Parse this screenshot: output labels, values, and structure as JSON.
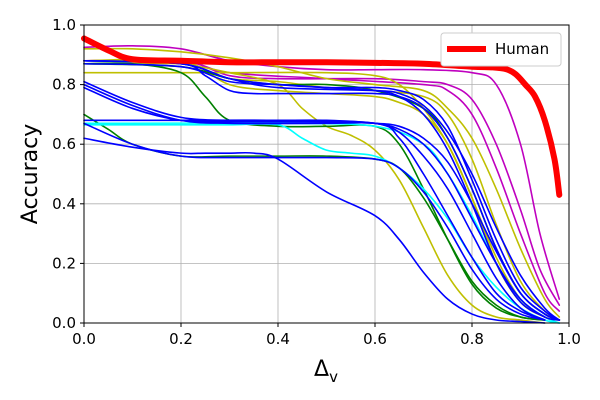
{
  "chart_data": {
    "type": "line",
    "title": "",
    "xlabel": "Δ",
    "xlabel_subscript": "v",
    "ylabel": "Accuracy",
    "xlim": [
      0.0,
      1.0
    ],
    "ylim": [
      0.0,
      1.0
    ],
    "xticks": [
      0.0,
      0.2,
      0.4,
      0.6,
      0.8,
      1.0
    ],
    "xtick_labels": [
      "0.0",
      "0.2",
      "0.4",
      "0.6",
      "0.8",
      "1.0"
    ],
    "yticks": [
      0.0,
      0.2,
      0.4,
      0.6,
      0.8,
      1.0
    ],
    "ytick_labels": [
      "0.0",
      "0.2",
      "0.4",
      "0.6",
      "0.8",
      "1.0"
    ],
    "grid": true,
    "legend": {
      "position": "top-right",
      "entries": [
        "Human"
      ]
    },
    "colors": {
      "human": "#ff0000",
      "blue": "#0000ff",
      "green": "#008000",
      "olive": "#bfbf00",
      "cyan": "#00ffff",
      "magenta": "#bf00bf"
    },
    "series": [
      {
        "name": "Human",
        "color": "#ff0000",
        "width": 6,
        "x": [
          0.0,
          0.05,
          0.1,
          0.2,
          0.3,
          0.4,
          0.5,
          0.6,
          0.7,
          0.8,
          0.84,
          0.87,
          0.89,
          0.91,
          0.93,
          0.95,
          0.97,
          0.98
        ],
        "y": [
          0.955,
          0.915,
          0.885,
          0.88,
          0.875,
          0.875,
          0.875,
          0.873,
          0.87,
          0.86,
          0.858,
          0.852,
          0.835,
          0.8,
          0.76,
          0.68,
          0.55,
          0.43
        ]
      },
      {
        "name": "m1",
        "color": "#bf00bf",
        "x": [
          0.0,
          0.1,
          0.2,
          0.3,
          0.4,
          0.5,
          0.6,
          0.7,
          0.8,
          0.85,
          0.9,
          0.94,
          0.98
        ],
        "y": [
          0.925,
          0.93,
          0.92,
          0.88,
          0.86,
          0.85,
          0.85,
          0.85,
          0.84,
          0.8,
          0.6,
          0.3,
          0.08
        ]
      },
      {
        "name": "m2",
        "color": "#bf00bf",
        "x": [
          0.0,
          0.2,
          0.3,
          0.4,
          0.6,
          0.7,
          0.75,
          0.8,
          0.85,
          0.9,
          0.94,
          0.98
        ],
        "y": [
          0.88,
          0.88,
          0.83,
          0.82,
          0.82,
          0.81,
          0.8,
          0.75,
          0.6,
          0.38,
          0.18,
          0.06
        ]
      },
      {
        "name": "m3",
        "color": "#bf00bf",
        "x": [
          0.0,
          0.2,
          0.3,
          0.5,
          0.7,
          0.75,
          0.8,
          0.85,
          0.9,
          0.95,
          0.98
        ],
        "y": [
          0.88,
          0.88,
          0.84,
          0.82,
          0.8,
          0.78,
          0.7,
          0.52,
          0.3,
          0.1,
          0.04
        ]
      },
      {
        "name": "o1",
        "color": "#bfbf00",
        "x": [
          0.0,
          0.1,
          0.2,
          0.3,
          0.4,
          0.5,
          0.6,
          0.7,
          0.75,
          0.8,
          0.85,
          0.9,
          0.95,
          0.98
        ],
        "y": [
          0.92,
          0.92,
          0.91,
          0.89,
          0.86,
          0.82,
          0.8,
          0.78,
          0.72,
          0.62,
          0.45,
          0.25,
          0.08,
          0.02
        ]
      },
      {
        "name": "o2",
        "color": "#bfbf00",
        "x": [
          0.0,
          0.15,
          0.2,
          0.3,
          0.5,
          0.6,
          0.65,
          0.7,
          0.75,
          0.8,
          0.85,
          0.9,
          0.95,
          0.98
        ],
        "y": [
          0.84,
          0.84,
          0.84,
          0.84,
          0.84,
          0.83,
          0.8,
          0.72,
          0.6,
          0.42,
          0.22,
          0.08,
          0.02,
          0.01
        ]
      },
      {
        "name": "o3",
        "color": "#bfbf00",
        "x": [
          0.0,
          0.2,
          0.25,
          0.3,
          0.4,
          0.5,
          0.6,
          0.7,
          0.75,
          0.8,
          0.85,
          0.9,
          0.95,
          0.98
        ],
        "y": [
          0.87,
          0.87,
          0.85,
          0.82,
          0.81,
          0.79,
          0.78,
          0.76,
          0.7,
          0.55,
          0.33,
          0.14,
          0.04,
          0.01
        ]
      },
      {
        "name": "o4",
        "color": "#bfbf00",
        "x": [
          0.0,
          0.1,
          0.2,
          0.3,
          0.4,
          0.45,
          0.5,
          0.55,
          0.6,
          0.65,
          0.7,
          0.75,
          0.8,
          0.85,
          0.9,
          0.95
        ],
        "y": [
          0.88,
          0.88,
          0.87,
          0.84,
          0.8,
          0.72,
          0.66,
          0.63,
          0.58,
          0.48,
          0.32,
          0.16,
          0.06,
          0.02,
          0.01,
          0.0
        ]
      },
      {
        "name": "o5",
        "color": "#bfbf00",
        "x": [
          0.0,
          0.2,
          0.3,
          0.4,
          0.5,
          0.6,
          0.65,
          0.7,
          0.75,
          0.8,
          0.85,
          0.9,
          0.95,
          0.98
        ],
        "y": [
          0.88,
          0.88,
          0.8,
          0.78,
          0.77,
          0.76,
          0.74,
          0.7,
          0.6,
          0.42,
          0.2,
          0.07,
          0.02,
          0.01
        ]
      },
      {
        "name": "g1",
        "color": "#008000",
        "x": [
          0.0,
          0.1,
          0.2,
          0.25,
          0.3,
          0.4,
          0.5,
          0.6,
          0.65,
          0.7,
          0.75,
          0.8,
          0.85,
          0.9,
          0.95
        ],
        "y": [
          0.87,
          0.87,
          0.84,
          0.76,
          0.68,
          0.66,
          0.66,
          0.66,
          0.6,
          0.45,
          0.28,
          0.13,
          0.05,
          0.02,
          0.01
        ]
      },
      {
        "name": "g2",
        "color": "#008000",
        "x": [
          0.0,
          0.05,
          0.1,
          0.2,
          0.3,
          0.4,
          0.5,
          0.6,
          0.65,
          0.7,
          0.75,
          0.8,
          0.85,
          0.9,
          0.95
        ],
        "y": [
          0.7,
          0.65,
          0.6,
          0.56,
          0.56,
          0.56,
          0.56,
          0.55,
          0.52,
          0.42,
          0.28,
          0.14,
          0.06,
          0.02,
          0.01
        ]
      },
      {
        "name": "g3",
        "color": "#008000",
        "x": [
          0.0,
          0.2,
          0.3,
          0.4,
          0.5,
          0.6,
          0.7,
          0.75,
          0.8,
          0.85,
          0.9,
          0.95,
          0.98
        ],
        "y": [
          0.87,
          0.86,
          0.82,
          0.8,
          0.8,
          0.78,
          0.72,
          0.62,
          0.45,
          0.25,
          0.1,
          0.03,
          0.01
        ]
      },
      {
        "name": "c1",
        "color": "#00ffff",
        "x": [
          0.0,
          0.1,
          0.2,
          0.3,
          0.4,
          0.45,
          0.5,
          0.55,
          0.6,
          0.65,
          0.7,
          0.75,
          0.8,
          0.85,
          0.9,
          0.95,
          0.98
        ],
        "y": [
          0.665,
          0.665,
          0.665,
          0.665,
          0.665,
          0.62,
          0.58,
          0.57,
          0.56,
          0.52,
          0.45,
          0.35,
          0.22,
          0.12,
          0.05,
          0.01,
          0.0
        ]
      },
      {
        "name": "c2",
        "color": "#00ffff",
        "x": [
          0.0,
          0.4,
          0.6,
          0.7,
          0.75,
          0.8,
          0.85,
          0.9,
          0.95,
          0.98
        ],
        "y": [
          0.67,
          0.67,
          0.66,
          0.6,
          0.5,
          0.36,
          0.2,
          0.08,
          0.02,
          0.0
        ]
      },
      {
        "name": "b1",
        "color": "#0000ff",
        "x": [
          0.0,
          0.1,
          0.2,
          0.25,
          0.3,
          0.35,
          0.4,
          0.5,
          0.6,
          0.65,
          0.7,
          0.75,
          0.8,
          0.85,
          0.9,
          0.95
        ],
        "y": [
          0.62,
          0.59,
          0.57,
          0.57,
          0.57,
          0.57,
          0.55,
          0.44,
          0.36,
          0.28,
          0.17,
          0.08,
          0.03,
          0.01,
          0.005,
          0.0
        ]
      },
      {
        "name": "b2",
        "color": "#0000ff",
        "x": [
          0.0,
          0.1,
          0.2,
          0.3,
          0.5,
          0.6,
          0.65,
          0.7,
          0.75,
          0.8,
          0.85,
          0.9,
          0.95
        ],
        "y": [
          0.67,
          0.6,
          0.56,
          0.555,
          0.555,
          0.55,
          0.52,
          0.44,
          0.32,
          0.18,
          0.08,
          0.03,
          0.01
        ]
      },
      {
        "name": "b3",
        "color": "#0000ff",
        "x": [
          0.0,
          0.1,
          0.2,
          0.3,
          0.4,
          0.5,
          0.6,
          0.65,
          0.7,
          0.75,
          0.8,
          0.85,
          0.9,
          0.95,
          0.98
        ],
        "y": [
          0.81,
          0.74,
          0.69,
          0.68,
          0.68,
          0.68,
          0.67,
          0.65,
          0.6,
          0.5,
          0.35,
          0.2,
          0.08,
          0.02,
          0.01
        ]
      },
      {
        "name": "b4",
        "color": "#0000ff",
        "x": [
          0.0,
          0.1,
          0.2,
          0.3,
          0.5,
          0.6,
          0.65,
          0.7,
          0.75,
          0.8,
          0.85,
          0.9,
          0.95,
          0.98
        ],
        "y": [
          0.79,
          0.72,
          0.68,
          0.675,
          0.675,
          0.67,
          0.66,
          0.62,
          0.54,
          0.4,
          0.24,
          0.1,
          0.03,
          0.01
        ]
      },
      {
        "name": "b5",
        "color": "#0000ff",
        "x": [
          0.0,
          0.1,
          0.2,
          0.3,
          0.5,
          0.6,
          0.65,
          0.7,
          0.75,
          0.8,
          0.85,
          0.9,
          0.95
        ],
        "y": [
          0.8,
          0.73,
          0.68,
          0.67,
          0.67,
          0.67,
          0.64,
          0.56,
          0.45,
          0.3,
          0.15,
          0.05,
          0.01
        ]
      },
      {
        "name": "b6",
        "color": "#0000ff",
        "x": [
          0.0,
          0.2,
          0.25,
          0.3,
          0.35,
          0.4,
          0.5,
          0.6,
          0.65,
          0.7,
          0.75,
          0.8,
          0.85,
          0.9,
          0.95,
          0.98
        ],
        "y": [
          0.88,
          0.87,
          0.83,
          0.78,
          0.77,
          0.77,
          0.77,
          0.77,
          0.76,
          0.72,
          0.62,
          0.45,
          0.25,
          0.1,
          0.03,
          0.01
        ]
      },
      {
        "name": "b7",
        "color": "#0000ff",
        "x": [
          0.0,
          0.2,
          0.3,
          0.4,
          0.5,
          0.6,
          0.65,
          0.7,
          0.75,
          0.8,
          0.85,
          0.9,
          0.95,
          0.98
        ],
        "y": [
          0.88,
          0.87,
          0.82,
          0.8,
          0.79,
          0.79,
          0.78,
          0.75,
          0.66,
          0.48,
          0.28,
          0.12,
          0.04,
          0.01
        ]
      },
      {
        "name": "b8",
        "color": "#0000ff",
        "x": [
          0.0,
          0.2,
          0.3,
          0.4,
          0.5,
          0.6,
          0.65,
          0.7,
          0.75,
          0.8,
          0.85,
          0.9,
          0.95
        ],
        "y": [
          0.87,
          0.86,
          0.81,
          0.8,
          0.79,
          0.78,
          0.76,
          0.7,
          0.58,
          0.4,
          0.2,
          0.07,
          0.02
        ]
      },
      {
        "name": "b9",
        "color": "#0000ff",
        "x": [
          0.0,
          0.2,
          0.3,
          0.4,
          0.6,
          0.65,
          0.7,
          0.75,
          0.8,
          0.85,
          0.9,
          0.95,
          0.98
        ],
        "y": [
          0.88,
          0.87,
          0.82,
          0.79,
          0.78,
          0.77,
          0.73,
          0.64,
          0.5,
          0.32,
          0.16,
          0.05,
          0.01
        ]
      },
      {
        "name": "b10",
        "color": "#0000ff",
        "x": [
          0.0,
          0.2,
          0.4,
          0.6,
          0.65,
          0.7,
          0.75,
          0.8,
          0.85,
          0.9,
          0.95
        ],
        "y": [
          0.68,
          0.68,
          0.68,
          0.67,
          0.62,
          0.5,
          0.36,
          0.22,
          0.1,
          0.04,
          0.01
        ]
      }
    ]
  }
}
